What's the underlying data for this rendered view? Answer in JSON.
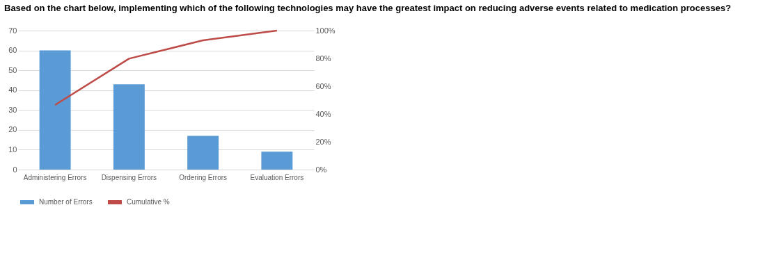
{
  "chart_data": {
    "type": "bar",
    "title": "Based on the chart below, implementing which of the following technologies may have the greatest impact on reducing adverse events related to medication processes?",
    "categories": [
      "Administering Errors",
      "Dispensing Errors",
      "Ordering Errors",
      "Evaluation Errors"
    ],
    "series": [
      {
        "name": "Number of Errors",
        "color": "#5b9bd5",
        "values": [
          60,
          43,
          17,
          9
        ]
      },
      {
        "name": "Cumulative %",
        "color": "#be4b48",
        "type": "line",
        "axis": "y2",
        "values": [
          46.5,
          79.8,
          93,
          100
        ]
      }
    ],
    "ylim": [
      0,
      70
    ],
    "yticks": [
      0,
      10,
      20,
      30,
      40,
      50,
      60,
      70
    ],
    "y2lim": [
      0,
      100
    ],
    "y2ticks": [
      {
        "value": 0,
        "label": "0%"
      },
      {
        "value": 20,
        "label": "20%"
      },
      {
        "value": 40,
        "label": "40%"
      },
      {
        "value": 60,
        "label": "60%"
      },
      {
        "value": 80,
        "label": "80%"
      },
      {
        "value": 100,
        "label": "100%"
      }
    ],
    "grid": "y",
    "legend": "bottom"
  }
}
